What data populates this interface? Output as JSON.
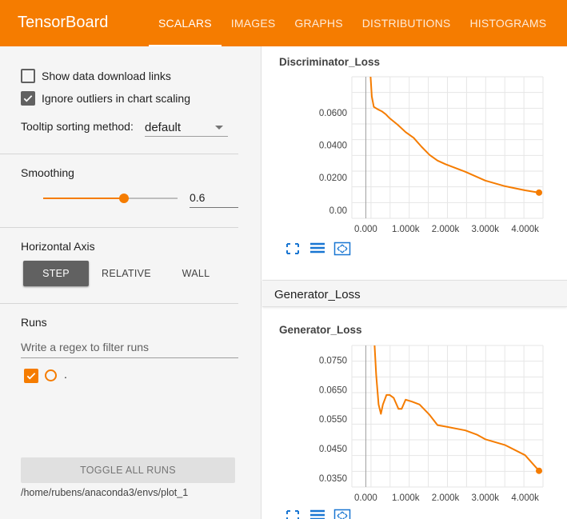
{
  "app": {
    "title": "TensorBoard"
  },
  "tabs": [
    {
      "label": "SCALARS",
      "active": true
    },
    {
      "label": "IMAGES",
      "active": false
    },
    {
      "label": "GRAPHS",
      "active": false
    },
    {
      "label": "DISTRIBUTIONS",
      "active": false
    },
    {
      "label": "HISTOGRAMS",
      "active": false
    }
  ],
  "sidebar": {
    "show_download_label": "Show data download links",
    "show_download_checked": false,
    "ignore_outliers_label": "Ignore outliers in chart scaling",
    "ignore_outliers_checked": true,
    "tooltip_label": "Tooltip sorting method:",
    "tooltip_value": "default",
    "smoothing_label": "Smoothing",
    "smoothing_value": "0.6",
    "smoothing_fraction": 0.6,
    "horizontal_axis_label": "Horizontal Axis",
    "axis_options": [
      {
        "label": "STEP",
        "active": true
      },
      {
        "label": "RELATIVE",
        "active": false
      },
      {
        "label": "WALL",
        "active": false
      }
    ],
    "runs_label": "Runs",
    "runs_filter_placeholder": "Write a regex to filter runs",
    "runs": [
      {
        "name": ".",
        "checked": true
      }
    ],
    "toggle_all_label": "TOGGLE ALL RUNS",
    "log_path": "/home/rubens/anaconda3/envs/plot_1"
  },
  "main": {
    "group_header": "Generator_Loss"
  },
  "colors": {
    "accent": "#f57c00",
    "sidebar_bg": "#f5f5f5"
  },
  "icons": [
    "expand-icon",
    "list-icon",
    "fit-domain-icon",
    "checkmark-icon",
    "caret-down-icon"
  ],
  "chart_data": [
    {
      "type": "line",
      "title": "Discriminator_Loss",
      "xlim": [
        -350,
        4450
      ],
      "ylim": [
        -0.005,
        0.082
      ],
      "x_ticks": [
        0,
        1000,
        2000,
        3000,
        4000
      ],
      "x_tick_labels": [
        "0.000",
        "1.000k",
        "2.000k",
        "3.000k",
        "4.000k"
      ],
      "y_ticks": [
        0,
        0.02,
        0.04,
        0.06
      ],
      "y_tick_labels": [
        "0.00",
        "0.0200",
        "0.0400",
        "0.0600"
      ],
      "series": [
        {
          "color": "#f57c00",
          "x": [
            120,
            150,
            200,
            300,
            400,
            500,
            600,
            800,
            1000,
            1200,
            1400,
            1600,
            1800,
            2000,
            2500,
            3000,
            3500,
            4000,
            4350
          ],
          "y": [
            0.082,
            0.07,
            0.0635,
            0.062,
            0.0608,
            0.059,
            0.0565,
            0.0525,
            0.048,
            0.0445,
            0.039,
            0.034,
            0.0305,
            0.0283,
            0.0236,
            0.0182,
            0.0147,
            0.0122,
            0.0108
          ]
        }
      ]
    },
    {
      "type": "line",
      "title": "Generator_Loss",
      "xlim": [
        -350,
        4450
      ],
      "ylim": [
        0.032,
        0.08
      ],
      "x_ticks": [
        0,
        1000,
        2000,
        3000,
        4000
      ],
      "x_tick_labels": [
        "0.000",
        "1.000k",
        "2.000k",
        "3.000k",
        "4.000k"
      ],
      "y_ticks": [
        0.035,
        0.045,
        0.055,
        0.065,
        0.075
      ],
      "y_tick_labels": [
        "0.0350",
        "0.0450",
        "0.0550",
        "0.0650",
        "0.0750"
      ],
      "series": [
        {
          "color": "#f57c00",
          "x": [
            220,
            260,
            320,
            380,
            430,
            520,
            600,
            700,
            820,
            900,
            1000,
            1150,
            1350,
            1600,
            1800,
            2000,
            2500,
            2800,
            3000,
            3500,
            4000,
            4350
          ],
          "y": [
            0.08,
            0.07,
            0.06,
            0.0568,
            0.06,
            0.0632,
            0.0632,
            0.0622,
            0.0585,
            0.0585,
            0.0616,
            0.061,
            0.06,
            0.0565,
            0.053,
            0.0525,
            0.0512,
            0.0497,
            0.0482,
            0.0462,
            0.0428,
            0.0375
          ]
        }
      ]
    }
  ]
}
